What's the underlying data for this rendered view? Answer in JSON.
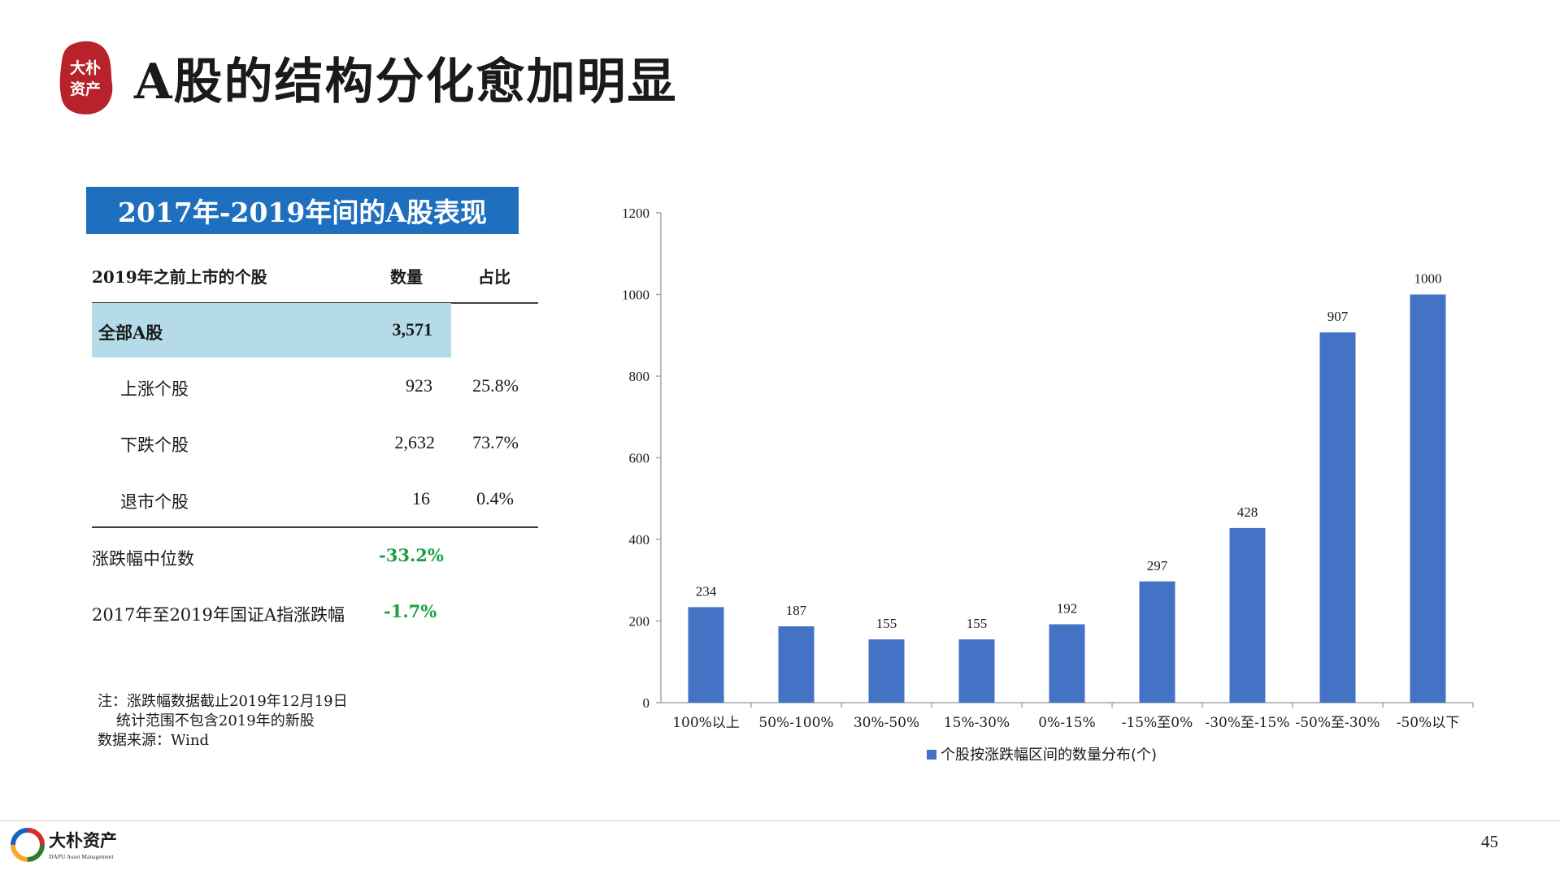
{
  "header": {
    "title": "A股的结构分化愈加明显",
    "seal_text": [
      "大朴",
      "资产"
    ]
  },
  "table": {
    "banner": "2017年-2019年间的A股表现",
    "headers": [
      "2019年之前上市的个股",
      "数量",
      "占比"
    ],
    "rows": [
      {
        "label": "全部A股",
        "count": "3,571",
        "ratio": ""
      },
      {
        "label": "上涨个股",
        "count": "923",
        "ratio": "25.8%"
      },
      {
        "label": "下跌个股",
        "count": "2,632",
        "ratio": "73.7%"
      },
      {
        "label": "退市个股",
        "count": "16",
        "ratio": "0.4%"
      }
    ],
    "stats": [
      {
        "label": "涨跌幅中位数",
        "value": "-33.2%"
      },
      {
        "label": "2017年至2019年国证A指涨跌幅",
        "value": "-1.7%"
      }
    ],
    "notes": [
      "注：涨跌幅数据截止2019年12月19日",
      "统计范围不包含2019年的新股",
      "数据来源：Wind"
    ],
    "highlight_color": "#b6dbe8",
    "banner_color": "#1f6fbf",
    "positive_color": "#1aa043"
  },
  "chart_data": {
    "type": "bar",
    "categories": [
      "100%以上",
      "50%-100%",
      "30%-50%",
      "15%-30%",
      "0%-15%",
      "-15%至0%",
      "-30%至-15%",
      "-50%至-30%",
      "-50%以下"
    ],
    "series": [
      {
        "name": "个股按涨跌幅区间的数量分布(个)",
        "values": [
          234,
          187,
          155,
          155,
          192,
          297,
          428,
          907,
          1000
        ],
        "color": "#4472c4"
      }
    ],
    "y_ticks": [
      "0",
      "200",
      "400",
      "600",
      "800",
      "1000",
      "1200"
    ],
    "ylim": [
      0,
      1200
    ],
    "grid": false,
    "legend_position": "bottom"
  },
  "footer": {
    "logo_text": "大朴资产",
    "logo_subtext": "DAPU Asset Management",
    "page_number": "45"
  }
}
